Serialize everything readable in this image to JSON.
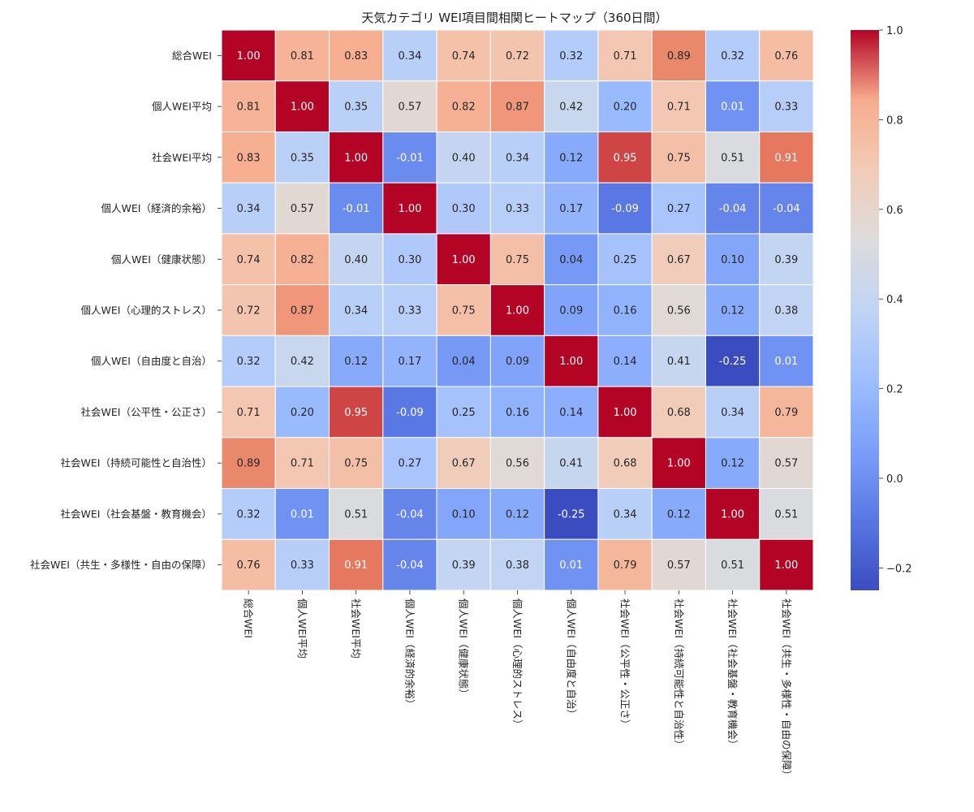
{
  "chart_data": {
    "type": "heatmap",
    "title": "天気カテゴリ WEI項目間相関ヒートマップ（360日間）",
    "labels": [
      "総合WEI",
      "個人WEI平均",
      "社会WEI平均",
      "個人WEI（経済的余裕）",
      "個人WEI（健康状態）",
      "個人WEI（心理的ストレス）",
      "個人WEI（自由度と自治）",
      "社会WEI（公平性・公正さ）",
      "社会WEI（持続可能性と自治性）",
      "社会WEI（社会基盤・教育機会）",
      "社会WEI（共生・多様性・自由の保障）"
    ],
    "matrix": [
      [
        1.0,
        0.81,
        0.83,
        0.34,
        0.74,
        0.72,
        0.32,
        0.71,
        0.89,
        0.32,
        0.76
      ],
      [
        0.81,
        1.0,
        0.35,
        0.57,
        0.82,
        0.87,
        0.42,
        0.2,
        0.71,
        0.01,
        0.33
      ],
      [
        0.83,
        0.35,
        1.0,
        -0.01,
        0.4,
        0.34,
        0.12,
        0.95,
        0.75,
        0.51,
        0.91
      ],
      [
        0.34,
        0.57,
        -0.01,
        1.0,
        0.3,
        0.33,
        0.17,
        -0.09,
        0.27,
        -0.04,
        -0.04
      ],
      [
        0.74,
        0.82,
        0.4,
        0.3,
        1.0,
        0.75,
        0.04,
        0.25,
        0.67,
        0.1,
        0.39
      ],
      [
        0.72,
        0.87,
        0.34,
        0.33,
        0.75,
        1.0,
        0.09,
        0.16,
        0.56,
        0.12,
        0.38
      ],
      [
        0.32,
        0.42,
        0.12,
        0.17,
        0.04,
        0.09,
        1.0,
        0.14,
        0.41,
        -0.25,
        0.01
      ],
      [
        0.71,
        0.2,
        0.95,
        -0.09,
        0.25,
        0.16,
        0.14,
        1.0,
        0.68,
        0.34,
        0.79
      ],
      [
        0.89,
        0.71,
        0.75,
        0.27,
        0.67,
        0.56,
        0.41,
        0.68,
        1.0,
        0.12,
        0.57
      ],
      [
        0.32,
        0.01,
        0.51,
        -0.04,
        0.1,
        0.12,
        -0.25,
        0.34,
        0.12,
        1.0,
        0.51
      ],
      [
        0.76,
        0.33,
        0.91,
        -0.04,
        0.39,
        0.38,
        0.01,
        0.79,
        0.57,
        0.51,
        1.0
      ]
    ],
    "colormap": "coolwarm",
    "vmin": -0.25,
    "vmax": 1.0,
    "colorbar_ticks": [
      "1.0",
      "0.8",
      "0.6",
      "0.4",
      "0.2",
      "0.0",
      "−0.2"
    ],
    "colorbar_tick_values": [
      1.0,
      0.8,
      0.6,
      0.4,
      0.2,
      0.0,
      -0.2
    ],
    "value_format": "2 decimals"
  }
}
